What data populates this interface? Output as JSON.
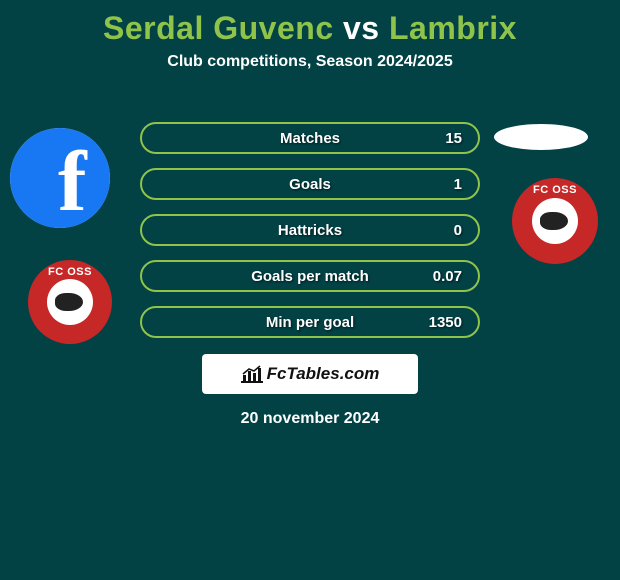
{
  "header": {
    "title_prefix": "Serdal Guvenc",
    "title_vs": " vs ",
    "title_suffix": "Lambrix",
    "title_prefix_color": "#8fc34a",
    "title_vs_color": "#ffffff",
    "title_suffix_color": "#8fc34a",
    "subtitle": "Club competitions, Season 2024/2025"
  },
  "avatars": {
    "left_primary": "facebook",
    "left_secondary_badge": "FC OSS",
    "right_secondary_badge": "FC OSS"
  },
  "stats": {
    "rows": [
      {
        "label": "Matches",
        "value": "15",
        "border_color": "#8fc34a"
      },
      {
        "label": "Goals",
        "value": "1",
        "border_color": "#8fc34a"
      },
      {
        "label": "Hattricks",
        "value": "0",
        "border_color": "#8fc34a"
      },
      {
        "label": "Goals per match",
        "value": "0.07",
        "border_color": "#8fc34a"
      },
      {
        "label": "Min per goal",
        "value": "1350",
        "border_color": "#8fc34a"
      }
    ],
    "pill_background": "#024245"
  },
  "brand": {
    "text": "FcTables.com"
  },
  "footer": {
    "date": "20 november 2024"
  },
  "colors": {
    "page_background": "#024245"
  }
}
